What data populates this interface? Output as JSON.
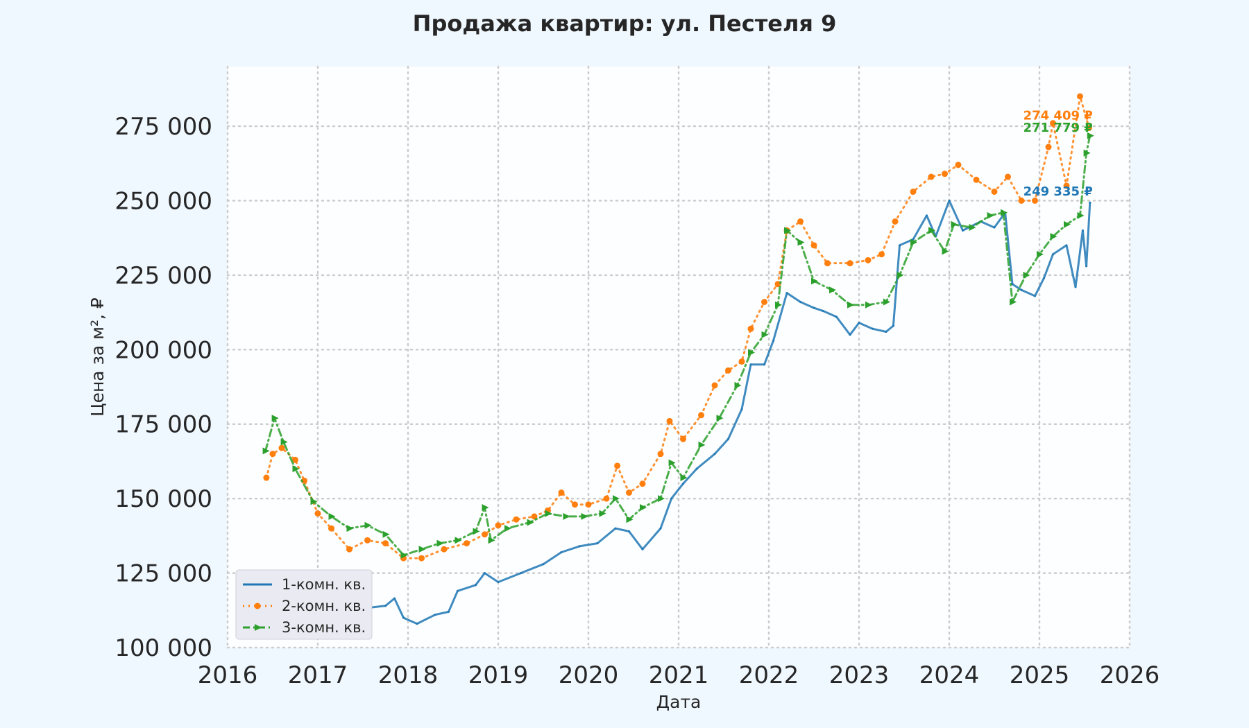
{
  "chart_data": {
    "type": "line",
    "title": "Продажа квартир: ул. Пестеля 9",
    "xlabel": "Дата",
    "ylabel": "Цена за м², ₽",
    "xlim": [
      2016,
      2026
    ],
    "ylim": [
      100000,
      295000
    ],
    "x_ticks": [
      "2016",
      "2017",
      "2018",
      "2019",
      "2020",
      "2021",
      "2022",
      "2023",
      "2024",
      "2025",
      "2026"
    ],
    "y_ticks": [
      "100 000",
      "125 000",
      "150 000",
      "175 000",
      "200 000",
      "225 000",
      "250 000",
      "275 000"
    ],
    "grid": true,
    "legend_position": "lower-left",
    "series": [
      {
        "name": "1-комн. кв.",
        "color": "#1f77b4",
        "style": "solid",
        "points": [
          [
            2016.42,
            124000
          ],
          [
            2016.6,
            123000
          ],
          [
            2016.8,
            121000
          ],
          [
            2017.0,
            117000
          ],
          [
            2017.2,
            115500
          ],
          [
            2017.45,
            114500
          ],
          [
            2017.6,
            113500
          ],
          [
            2017.75,
            114000
          ],
          [
            2017.85,
            116500
          ],
          [
            2017.95,
            110000
          ],
          [
            2018.1,
            108000
          ],
          [
            2018.3,
            111000
          ],
          [
            2018.45,
            112000
          ],
          [
            2018.55,
            119000
          ],
          [
            2018.75,
            121000
          ],
          [
            2018.85,
            125000
          ],
          [
            2019.0,
            122000
          ],
          [
            2019.25,
            125000
          ],
          [
            2019.5,
            128000
          ],
          [
            2019.7,
            132000
          ],
          [
            2019.9,
            134000
          ],
          [
            2020.1,
            135000
          ],
          [
            2020.3,
            140000
          ],
          [
            2020.45,
            139000
          ],
          [
            2020.6,
            133000
          ],
          [
            2020.8,
            140000
          ],
          [
            2020.92,
            150000
          ],
          [
            2021.05,
            155000
          ],
          [
            2021.2,
            160000
          ],
          [
            2021.4,
            165000
          ],
          [
            2021.55,
            170000
          ],
          [
            2021.7,
            180000
          ],
          [
            2021.8,
            195000
          ],
          [
            2021.95,
            195000
          ],
          [
            2022.05,
            203000
          ],
          [
            2022.2,
            219000
          ],
          [
            2022.35,
            216000
          ],
          [
            2022.5,
            214000
          ],
          [
            2022.6,
            213000
          ],
          [
            2022.75,
            211000
          ],
          [
            2022.9,
            205000
          ],
          [
            2023.0,
            209000
          ],
          [
            2023.15,
            207000
          ],
          [
            2023.3,
            206000
          ],
          [
            2023.38,
            208000
          ],
          [
            2023.45,
            235000
          ],
          [
            2023.6,
            237000
          ],
          [
            2023.75,
            245000
          ],
          [
            2023.85,
            238000
          ],
          [
            2024.0,
            250000
          ],
          [
            2024.15,
            240000
          ],
          [
            2024.35,
            243000
          ],
          [
            2024.5,
            241000
          ],
          [
            2024.62,
            246000
          ],
          [
            2024.7,
            222000
          ],
          [
            2024.8,
            220000
          ],
          [
            2024.95,
            218000
          ],
          [
            2025.05,
            224000
          ],
          [
            2025.15,
            232000
          ],
          [
            2025.3,
            235000
          ],
          [
            2025.4,
            221000
          ],
          [
            2025.48,
            240000
          ],
          [
            2025.52,
            228000
          ],
          [
            2025.56,
            249335
          ]
        ]
      },
      {
        "name": "2-комн. кв.",
        "color": "#ff7f0e",
        "style": "dotted",
        "points": [
          [
            2016.43,
            157000
          ],
          [
            2016.5,
            165000
          ],
          [
            2016.6,
            167000
          ],
          [
            2016.75,
            163000
          ],
          [
            2016.85,
            156000
          ],
          [
            2017.0,
            145000
          ],
          [
            2017.15,
            140000
          ],
          [
            2017.35,
            133000
          ],
          [
            2017.55,
            136000
          ],
          [
            2017.75,
            135000
          ],
          [
            2017.95,
            130000
          ],
          [
            2018.15,
            130000
          ],
          [
            2018.4,
            133000
          ],
          [
            2018.65,
            135000
          ],
          [
            2018.85,
            138000
          ],
          [
            2019.0,
            141000
          ],
          [
            2019.2,
            143000
          ],
          [
            2019.4,
            144000
          ],
          [
            2019.55,
            146000
          ],
          [
            2019.7,
            152000
          ],
          [
            2019.85,
            148000
          ],
          [
            2020.0,
            148000
          ],
          [
            2020.2,
            150000
          ],
          [
            2020.32,
            161000
          ],
          [
            2020.45,
            152000
          ],
          [
            2020.6,
            155000
          ],
          [
            2020.8,
            165000
          ],
          [
            2020.9,
            176000
          ],
          [
            2021.05,
            170000
          ],
          [
            2021.25,
            178000
          ],
          [
            2021.4,
            188000
          ],
          [
            2021.55,
            193000
          ],
          [
            2021.7,
            196000
          ],
          [
            2021.8,
            207000
          ],
          [
            2021.95,
            216000
          ],
          [
            2022.1,
            222000
          ],
          [
            2022.2,
            240000
          ],
          [
            2022.35,
            243000
          ],
          [
            2022.5,
            235000
          ],
          [
            2022.65,
            229000
          ],
          [
            2022.9,
            229000
          ],
          [
            2023.1,
            230000
          ],
          [
            2023.25,
            232000
          ],
          [
            2023.4,
            243000
          ],
          [
            2023.6,
            253000
          ],
          [
            2023.8,
            258000
          ],
          [
            2023.95,
            259000
          ],
          [
            2024.1,
            262000
          ],
          [
            2024.3,
            257000
          ],
          [
            2024.5,
            253000
          ],
          [
            2024.65,
            258000
          ],
          [
            2024.8,
            250000
          ],
          [
            2024.95,
            250000
          ],
          [
            2025.1,
            268000
          ],
          [
            2025.15,
            276000
          ],
          [
            2025.3,
            255000
          ],
          [
            2025.45,
            285000
          ],
          [
            2025.55,
            274409
          ]
        ]
      },
      {
        "name": "3-комн. кв.",
        "color": "#2ca02c",
        "style": "dashdot",
        "points": [
          [
            2016.42,
            166000
          ],
          [
            2016.52,
            177000
          ],
          [
            2016.62,
            169000
          ],
          [
            2016.75,
            160000
          ],
          [
            2016.95,
            149000
          ],
          [
            2017.15,
            144000
          ],
          [
            2017.35,
            140000
          ],
          [
            2017.55,
            141000
          ],
          [
            2017.75,
            138000
          ],
          [
            2017.95,
            131000
          ],
          [
            2018.15,
            133000
          ],
          [
            2018.35,
            135000
          ],
          [
            2018.55,
            136000
          ],
          [
            2018.75,
            139000
          ],
          [
            2018.85,
            147000
          ],
          [
            2018.92,
            136000
          ],
          [
            2019.1,
            140000
          ],
          [
            2019.35,
            142000
          ],
          [
            2019.55,
            145000
          ],
          [
            2019.75,
            144000
          ],
          [
            2019.95,
            144000
          ],
          [
            2020.15,
            145000
          ],
          [
            2020.3,
            150000
          ],
          [
            2020.45,
            143000
          ],
          [
            2020.6,
            147000
          ],
          [
            2020.8,
            150000
          ],
          [
            2020.92,
            162000
          ],
          [
            2021.05,
            157000
          ],
          [
            2021.25,
            168000
          ],
          [
            2021.45,
            177000
          ],
          [
            2021.65,
            188000
          ],
          [
            2021.8,
            199000
          ],
          [
            2021.95,
            205000
          ],
          [
            2022.1,
            215000
          ],
          [
            2022.2,
            240000
          ],
          [
            2022.35,
            236000
          ],
          [
            2022.5,
            223000
          ],
          [
            2022.7,
            220000
          ],
          [
            2022.9,
            215000
          ],
          [
            2023.1,
            215000
          ],
          [
            2023.3,
            216000
          ],
          [
            2023.45,
            225000
          ],
          [
            2023.6,
            236000
          ],
          [
            2023.8,
            240000
          ],
          [
            2023.95,
            233000
          ],
          [
            2024.05,
            242000
          ],
          [
            2024.25,
            241000
          ],
          [
            2024.45,
            245000
          ],
          [
            2024.6,
            246000
          ],
          [
            2024.7,
            216000
          ],
          [
            2024.85,
            225000
          ],
          [
            2025.0,
            232000
          ],
          [
            2025.15,
            238000
          ],
          [
            2025.3,
            242000
          ],
          [
            2025.45,
            245000
          ],
          [
            2025.52,
            266000
          ],
          [
            2025.56,
            271779
          ]
        ]
      }
    ],
    "annotations": [
      {
        "text": "274 409 ₽",
        "x": 2025.56,
        "y": 274409,
        "color": "#ff7f0e"
      },
      {
        "text": "271 779 ₽",
        "x": 2025.56,
        "y": 271779,
        "color": "#2ca02c"
      },
      {
        "text": "249 335 ₽",
        "x": 2025.56,
        "y": 249335,
        "color": "#1f77b4"
      }
    ]
  }
}
